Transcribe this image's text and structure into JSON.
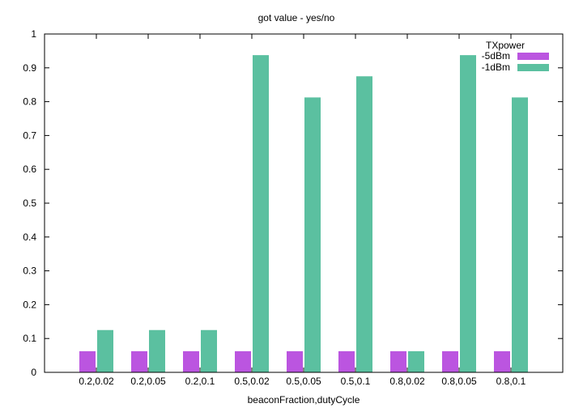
{
  "chart_data": {
    "type": "bar",
    "title": "got value - yes/no",
    "xlabel": "beaconFraction,dutyCycle",
    "ylabel": "",
    "ylim": [
      0,
      1
    ],
    "yticks": [
      "0",
      "0.1",
      "0.2",
      "0.3",
      "0.4",
      "0.5",
      "0.6",
      "0.7",
      "0.8",
      "0.9",
      "1"
    ],
    "categories": [
      "0.2,0.02",
      "0.2,0.05",
      "0.2,0.1",
      "0.5,0.02",
      "0.5,0.05",
      "0.5,0.1",
      "0.8,0.02",
      "0.8,0.05",
      "0.8,0.1"
    ],
    "legend_title": "TXpower",
    "legend_position": "top-right",
    "grid": false,
    "series": [
      {
        "name": "-5dBm",
        "color": "#bb55e0",
        "values": [
          0.0625,
          0.0625,
          0.0625,
          0.0625,
          0.0625,
          0.0625,
          0.0625,
          0.0625,
          0.0625
        ]
      },
      {
        "name": "-1dBm",
        "color": "#5bc0a0",
        "values": [
          0.125,
          0.125,
          0.125,
          0.9375,
          0.8125,
          0.875,
          0.0625,
          0.9375,
          0.8125
        ]
      }
    ]
  }
}
